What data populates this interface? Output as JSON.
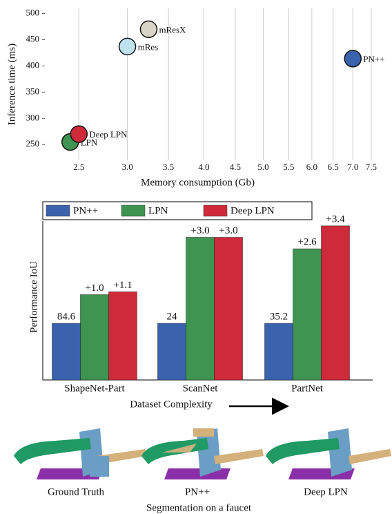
{
  "chart_data": [
    {
      "type": "scatter",
      "xlabel": "Memory consumption (Gb)",
      "ylabel": "Inference time (ms)",
      "x": [
        3.25,
        3.0,
        7.0,
        2.42,
        2.5
      ],
      "values": [
        470,
        437,
        414,
        255,
        270
      ],
      "point_labels": [
        "mResX",
        "mRes",
        "PN++",
        "LPN",
        "Deep LPN"
      ],
      "colors": [
        "#d8d4c6",
        "#bfe2ef",
        "#3a62ad",
        "#3e9450",
        "#cf2a3a"
      ],
      "xscale": "log",
      "xlim": [
        2.2,
        7.7
      ],
      "xticks": [
        2.5,
        {
          "value": 3,
          "label": "3.0"
        },
        3.5,
        {
          "value": 4,
          "label": "4.0"
        },
        4.5,
        {
          "value": 5,
          "label": "5.0"
        },
        5.5,
        {
          "value": 6,
          "label": "6.0"
        },
        6.5,
        {
          "value": 7,
          "label": "7.0"
        },
        7.5
      ],
      "ylim": [
        220,
        510
      ],
      "yticks": [
        250,
        300,
        350,
        400,
        450,
        500
      ],
      "grid": "x"
    },
    {
      "type": "bar",
      "ylabel": "Performance IoU",
      "xlabel": "Dataset Complexity",
      "categories": [
        "ShapeNet-Part",
        "ScanNet",
        "PartNet"
      ],
      "series": [
        {
          "name": "PN++",
          "color": "#3a62ad",
          "values": [
            84.6,
            24,
            35.2
          ]
        },
        {
          "name": "LPN",
          "color": "#3e9450",
          "values": [
            1.0,
            3.0,
            2.6
          ],
          "value_labels": [
            "+1.0",
            "+3.0",
            "+2.6"
          ]
        },
        {
          "name": "Deep LPN",
          "color": "#cf2a3a",
          "values": [
            1.1,
            3.0,
            3.4
          ],
          "value_labels": [
            "+1.1",
            "+3.0",
            "+3.4"
          ]
        }
      ],
      "legend": "top"
    }
  ],
  "segmentation": {
    "captions": [
      "Ground Truth",
      "PN++",
      "Deep LPN"
    ],
    "title": "Segmentation on a faucet"
  }
}
